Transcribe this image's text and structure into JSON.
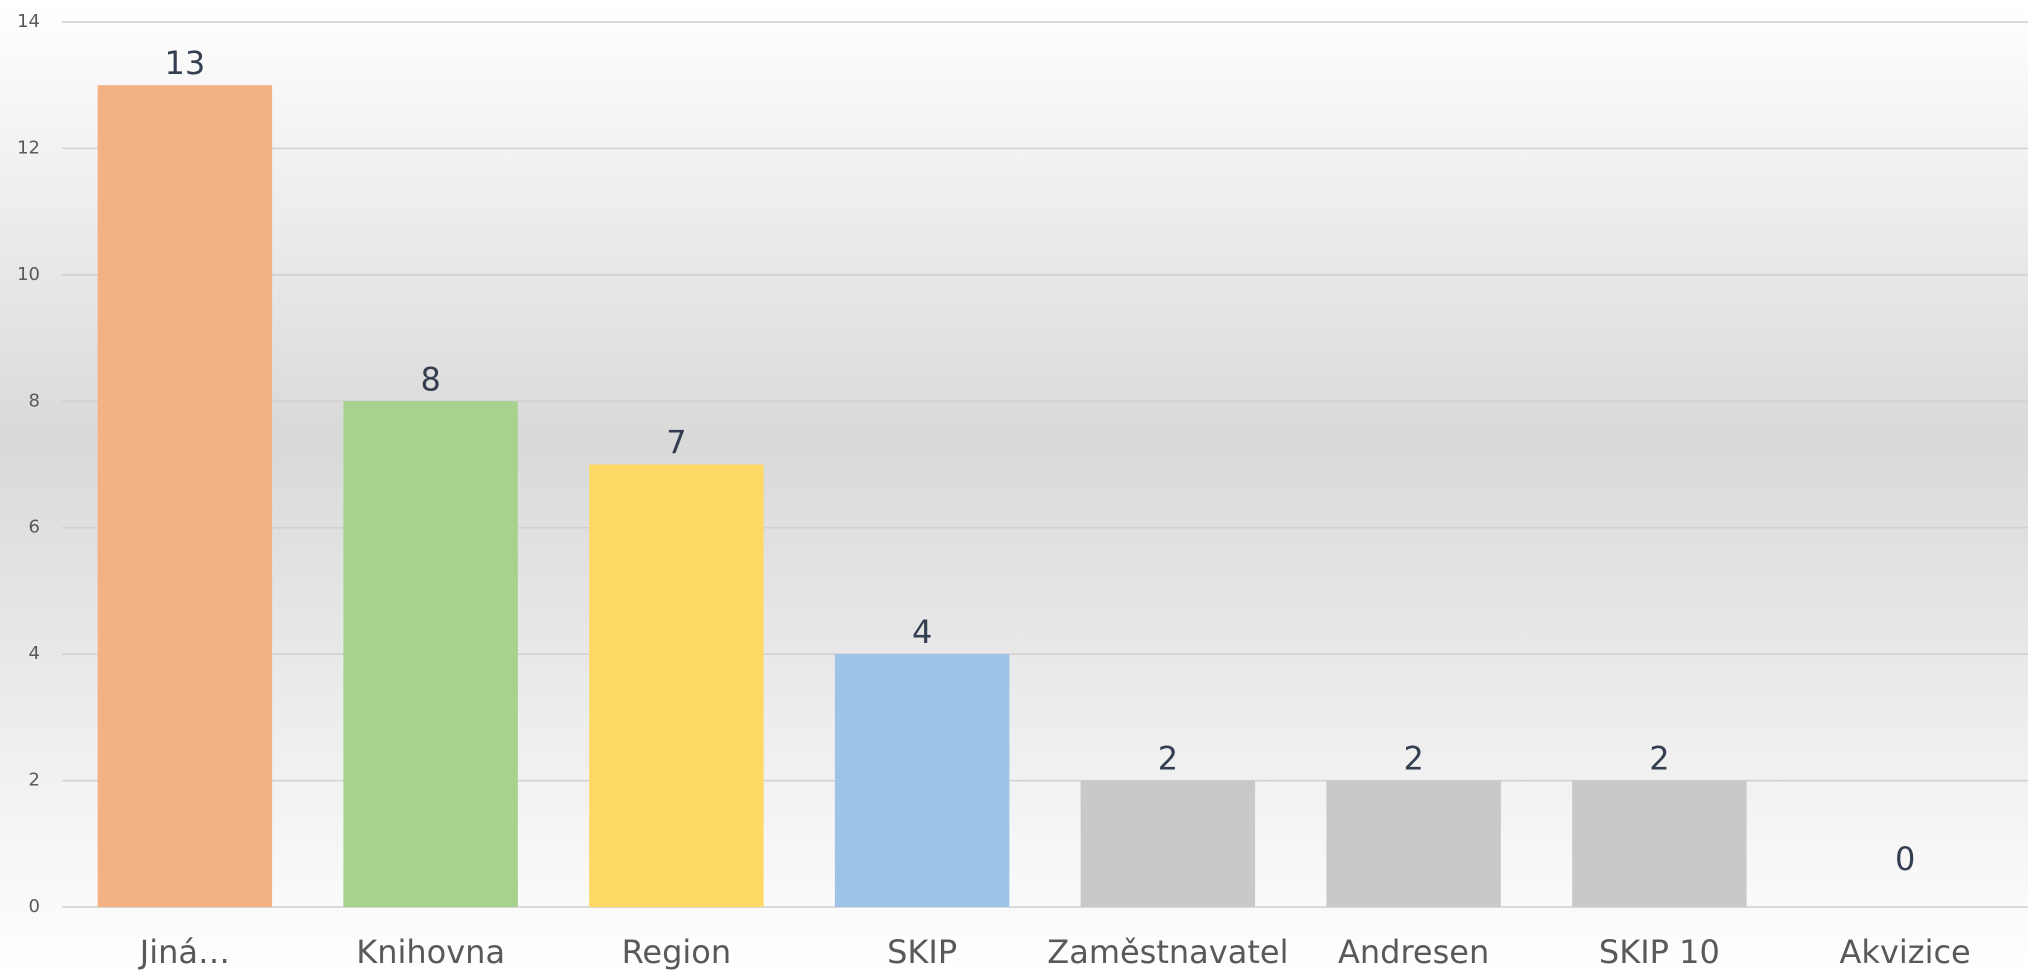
{
  "chart_data": {
    "type": "bar",
    "categories": [
      "Jiná…",
      "Knihovna",
      "Region",
      "SKIP",
      "Zaměstnavatel",
      "Andresen",
      "SKIP 10",
      "Akvizice"
    ],
    "values": [
      13,
      8,
      7,
      4,
      2,
      2,
      2,
      0
    ],
    "colors": [
      "#f4b183",
      "#a9d18e",
      "#ffd966",
      "#9dc3e6",
      "#c9c9c9",
      "#c9c9c9",
      "#c9c9c9",
      "#c9c9c9"
    ],
    "ylim": [
      0,
      14
    ],
    "yticks": [
      0,
      2,
      4,
      6,
      8,
      10,
      12,
      14
    ],
    "grid": true
  }
}
